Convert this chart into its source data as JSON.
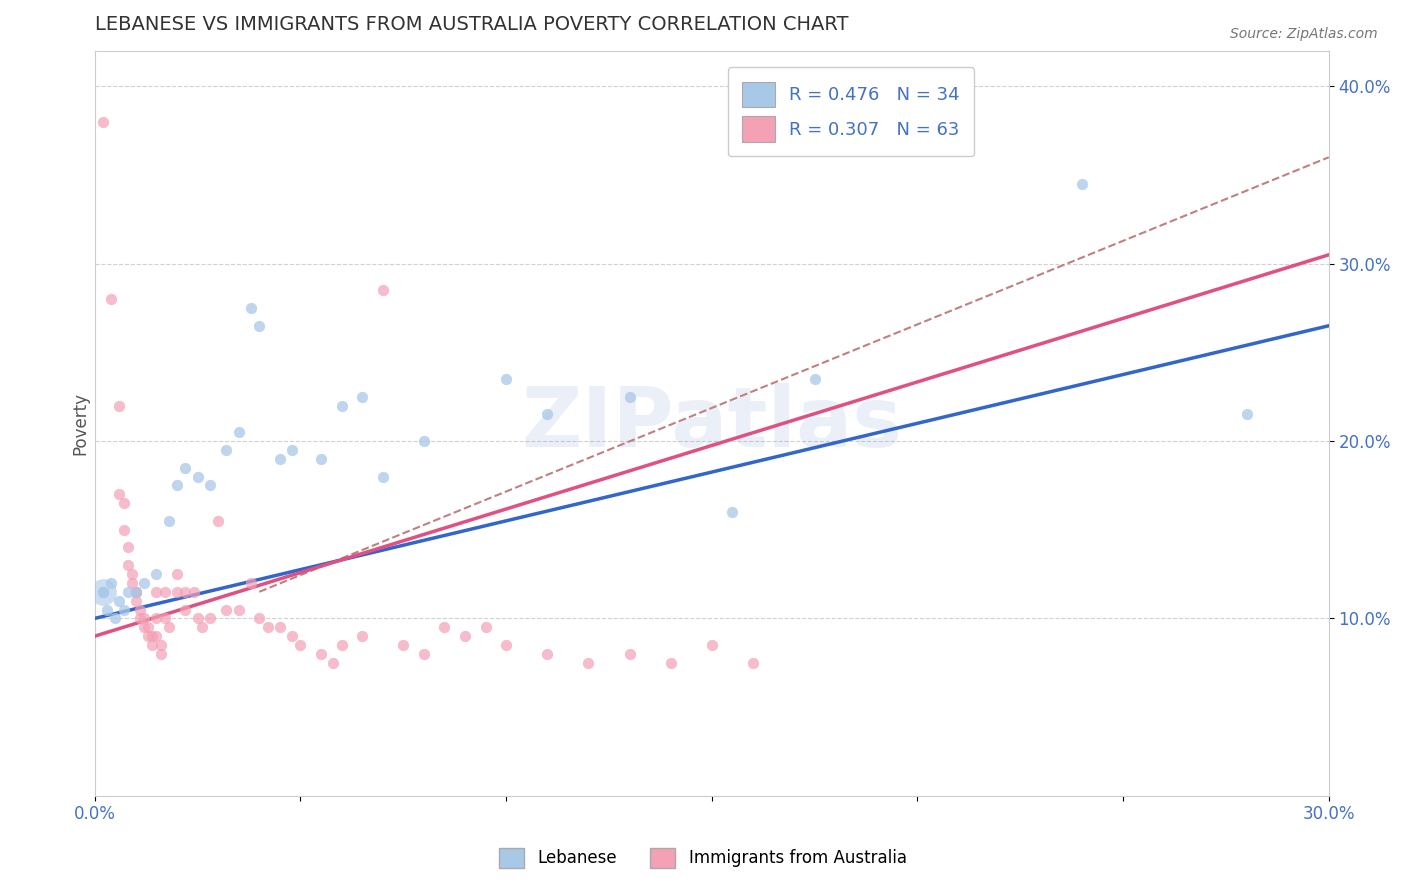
{
  "title": "LEBANESE VS IMMIGRANTS FROM AUSTRALIA POVERTY CORRELATION CHART",
  "source": "Source: ZipAtlas.com",
  "xlabel": "",
  "ylabel": "Poverty",
  "watermark": "ZIPatlas",
  "x_min": 0.0,
  "x_max": 0.3,
  "y_min": 0.0,
  "y_max": 0.42,
  "x_ticks": [
    0.0,
    0.05,
    0.1,
    0.15,
    0.2,
    0.25,
    0.3
  ],
  "x_tick_labels": [
    "0.0%",
    "",
    "",
    "",
    "",
    "",
    "30.0%"
  ],
  "y_ticks": [
    0.1,
    0.2,
    0.3,
    0.4
  ],
  "y_tick_labels": [
    "10.0%",
    "20.0%",
    "30.0%",
    "40.0%"
  ],
  "legend_r_blue": "R = 0.476",
  "legend_n_blue": "N = 34",
  "legend_r_pink": "R = 0.307",
  "legend_n_pink": "N = 63",
  "blue_color": "#a8c8e8",
  "pink_color": "#f4a0b5",
  "blue_line_color": "#3366cc",
  "pink_line_color": "#e05080",
  "dashed_line_color": "#c08080",
  "background_color": "#ffffff",
  "grid_color": "#cccccc",
  "title_color": "#333333",
  "axis_label_color": "#4472c4",
  "blue_scatter": [
    [
      0.002,
      0.115
    ],
    [
      0.003,
      0.105
    ],
    [
      0.004,
      0.12
    ],
    [
      0.005,
      0.1
    ],
    [
      0.006,
      0.11
    ],
    [
      0.007,
      0.105
    ],
    [
      0.008,
      0.115
    ],
    [
      0.01,
      0.115
    ],
    [
      0.012,
      0.12
    ],
    [
      0.015,
      0.125
    ],
    [
      0.018,
      0.155
    ],
    [
      0.02,
      0.175
    ],
    [
      0.022,
      0.185
    ],
    [
      0.025,
      0.18
    ],
    [
      0.028,
      0.175
    ],
    [
      0.032,
      0.195
    ],
    [
      0.035,
      0.205
    ],
    [
      0.038,
      0.275
    ],
    [
      0.04,
      0.265
    ],
    [
      0.045,
      0.19
    ],
    [
      0.048,
      0.195
    ],
    [
      0.055,
      0.19
    ],
    [
      0.06,
      0.22
    ],
    [
      0.065,
      0.225
    ],
    [
      0.07,
      0.18
    ],
    [
      0.08,
      0.2
    ],
    [
      0.1,
      0.235
    ],
    [
      0.11,
      0.215
    ],
    [
      0.13,
      0.225
    ],
    [
      0.155,
      0.16
    ],
    [
      0.175,
      0.235
    ],
    [
      0.24,
      0.345
    ],
    [
      0.28,
      0.215
    ],
    [
      0.002,
      0.115
    ]
  ],
  "pink_scatter": [
    [
      0.002,
      0.38
    ],
    [
      0.004,
      0.28
    ],
    [
      0.006,
      0.22
    ],
    [
      0.006,
      0.17
    ],
    [
      0.007,
      0.165
    ],
    [
      0.007,
      0.15
    ],
    [
      0.008,
      0.14
    ],
    [
      0.008,
      0.13
    ],
    [
      0.009,
      0.125
    ],
    [
      0.009,
      0.12
    ],
    [
      0.01,
      0.115
    ],
    [
      0.01,
      0.11
    ],
    [
      0.01,
      0.115
    ],
    [
      0.011,
      0.105
    ],
    [
      0.011,
      0.1
    ],
    [
      0.012,
      0.1
    ],
    [
      0.012,
      0.095
    ],
    [
      0.013,
      0.09
    ],
    [
      0.013,
      0.095
    ],
    [
      0.014,
      0.09
    ],
    [
      0.014,
      0.085
    ],
    [
      0.015,
      0.115
    ],
    [
      0.015,
      0.1
    ],
    [
      0.015,
      0.09
    ],
    [
      0.016,
      0.085
    ],
    [
      0.016,
      0.08
    ],
    [
      0.017,
      0.115
    ],
    [
      0.017,
      0.1
    ],
    [
      0.018,
      0.095
    ],
    [
      0.02,
      0.125
    ],
    [
      0.02,
      0.115
    ],
    [
      0.022,
      0.105
    ],
    [
      0.022,
      0.115
    ],
    [
      0.024,
      0.115
    ],
    [
      0.025,
      0.1
    ],
    [
      0.026,
      0.095
    ],
    [
      0.028,
      0.1
    ],
    [
      0.03,
      0.155
    ],
    [
      0.032,
      0.105
    ],
    [
      0.035,
      0.105
    ],
    [
      0.038,
      0.12
    ],
    [
      0.04,
      0.1
    ],
    [
      0.042,
      0.095
    ],
    [
      0.045,
      0.095
    ],
    [
      0.048,
      0.09
    ],
    [
      0.05,
      0.085
    ],
    [
      0.055,
      0.08
    ],
    [
      0.058,
      0.075
    ],
    [
      0.06,
      0.085
    ],
    [
      0.065,
      0.09
    ],
    [
      0.07,
      0.285
    ],
    [
      0.075,
      0.085
    ],
    [
      0.08,
      0.08
    ],
    [
      0.085,
      0.095
    ],
    [
      0.09,
      0.09
    ],
    [
      0.095,
      0.095
    ],
    [
      0.1,
      0.085
    ],
    [
      0.11,
      0.08
    ],
    [
      0.12,
      0.075
    ],
    [
      0.13,
      0.08
    ],
    [
      0.14,
      0.075
    ],
    [
      0.15,
      0.085
    ],
    [
      0.16,
      0.075
    ]
  ],
  "blue_line_x": [
    0.0,
    0.3
  ],
  "blue_line_y": [
    0.1,
    0.265
  ],
  "pink_line_x": [
    0.0,
    0.3
  ],
  "pink_line_y": [
    0.09,
    0.305
  ],
  "dashed_line_x": [
    0.04,
    0.3
  ],
  "dashed_line_y": [
    0.115,
    0.36
  ]
}
